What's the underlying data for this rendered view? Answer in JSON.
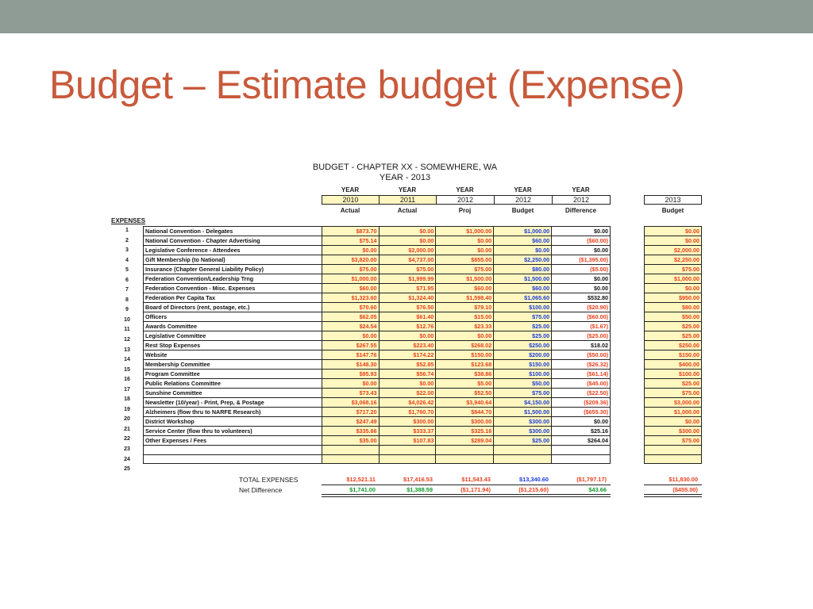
{
  "slide": {
    "title": "Budget – Estimate budget (Expense)"
  },
  "sheet": {
    "title": "BUDGET - CHAPTER XX - SOMEWHERE, WA",
    "subtitle": "YEAR - 2013",
    "expenses_label": "EXPENSES",
    "columns": [
      {
        "year_label": "YEAR",
        "year": "2010",
        "type": "Actual"
      },
      {
        "year_label": "YEAR",
        "year": "2011",
        "type": "Actual"
      },
      {
        "year_label": "YEAR",
        "year": "2012",
        "type": "Proj"
      },
      {
        "year_label": "YEAR",
        "year": "2012",
        "type": "Budget"
      },
      {
        "year_label": "YEAR",
        "year": "2012",
        "type": "Difference"
      }
    ],
    "budget_column": {
      "year": "2013",
      "type": "Budget"
    },
    "rows": [
      {
        "n": "1",
        "desc": "National Convention - Delegates",
        "a2010": "$873.70",
        "a2011": "$0.00",
        "p2012": "$1,000.00",
        "b2012": "$1,000.00",
        "diff": "$0.00",
        "b2013": "$0.00"
      },
      {
        "n": "2",
        "desc": "National Convention - Chapter Advertising",
        "a2010": "$75.14",
        "a2011": "$0.00",
        "p2012": "$0.00",
        "b2012": "$60.00",
        "diff": "($60.00)",
        "b2013": "$0.00"
      },
      {
        "n": "3",
        "desc": "Legislative Conference - Attendees",
        "a2010": "$0.00",
        "a2011": "$2,000.00",
        "p2012": "$0.00",
        "b2012": "$0.00",
        "diff": "$0.00",
        "b2013": "$2,000.00"
      },
      {
        "n": "4",
        "desc": "Gift Membership (to National)",
        "a2010": "$3,820.00",
        "a2011": "$4,737.00",
        "p2012": "$855.00",
        "b2012": "$2,250.00",
        "diff": "($1,395.00)",
        "b2013": "$2,250.00"
      },
      {
        "n": "5",
        "desc": "Insurance (Chapter General Liability Policy)",
        "a2010": "$75.00",
        "a2011": "$75.00",
        "p2012": "$75.00",
        "b2012": "$80.00",
        "diff": "($5.00)",
        "b2013": "$75.00"
      },
      {
        "n": "6",
        "desc": "Federation Convention/Leadership Trng",
        "a2010": "$1,000.00",
        "a2011": "$1,999.99",
        "p2012": "$1,500.00",
        "b2012": "$1,500.00",
        "diff": "$0.00",
        "b2013": "$1,000.00"
      },
      {
        "n": "7",
        "desc": "Federation Convention - Misc. Expenses",
        "a2010": "$60.00",
        "a2011": "$71.95",
        "p2012": "$60.00",
        "b2012": "$60.00",
        "diff": "$0.00",
        "b2013": "$0.00"
      },
      {
        "n": "8",
        "desc": "Federation Per Capita Tax",
        "a2010": "$1,323.60",
        "a2011": "$1,324.40",
        "p2012": "$1,598.40",
        "b2012": "$1,065.60",
        "diff": "$532.80",
        "b2013": "$950.00"
      },
      {
        "n": "9",
        "desc": "Board of Directors (rent, postage, etc.)",
        "a2010": "$70.60",
        "a2011": "$76.50",
        "p2012": "$79.10",
        "b2012": "$100.00",
        "diff": "($20.90)",
        "b2013": "$80.00"
      },
      {
        "n": "10",
        "desc": "Officers",
        "a2010": "$62.05",
        "a2011": "$61.40",
        "p2012": "$15.00",
        "b2012": "$75.00",
        "diff": "($60.00)",
        "b2013": "$50.00"
      },
      {
        "n": "11",
        "desc": "Awards Committee",
        "a2010": "$24.54",
        "a2011": "$12.76",
        "p2012": "$23.33",
        "b2012": "$25.00",
        "diff": "($1.67)",
        "b2013": "$25.00"
      },
      {
        "n": "12",
        "desc": "Legislative Committee",
        "a2010": "$0.00",
        "a2011": "$0.00",
        "p2012": "$0.00",
        "b2012": "$25.00",
        "diff": "($25.00)",
        "b2013": "$25.00"
      },
      {
        "n": "13",
        "desc": "Rest Stop Expenses",
        "a2010": "$267.55",
        "a2011": "$223.40",
        "p2012": "$268.02",
        "b2012": "$250.00",
        "diff": "$18.02",
        "b2013": "$250.00"
      },
      {
        "n": "14",
        "desc": "Website",
        "a2010": "$147.76",
        "a2011": "$174.22",
        "p2012": "$150.00",
        "b2012": "$200.00",
        "diff": "($50.00)",
        "b2013": "$150.00"
      },
      {
        "n": "15",
        "desc": "Membership Committee",
        "a2010": "$148.30",
        "a2011": "$52.85",
        "p2012": "$123.68",
        "b2012": "$150.00",
        "diff": "($26.32)",
        "b2013": "$400.00"
      },
      {
        "n": "16",
        "desc": "Program Committee",
        "a2010": "$95.93",
        "a2011": "$56.74",
        "p2012": "$38.86",
        "b2012": "$100.00",
        "diff": "($61.14)",
        "b2013": "$100.00"
      },
      {
        "n": "17",
        "desc": "Public Relations Committee",
        "a2010": "$0.00",
        "a2011": "$0.00",
        "p2012": "$5.00",
        "b2012": "$50.00",
        "diff": "($45.00)",
        "b2013": "$25.00"
      },
      {
        "n": "18",
        "desc": "Sunshine Committee",
        "a2010": "$73.43",
        "a2011": "$22.00",
        "p2012": "$52.50",
        "b2012": "$75.00",
        "diff": "($22.50)",
        "b2013": "$75.00"
      },
      {
        "n": "19",
        "desc": "Newsletter (10/year) - Print, Prep, & Postage",
        "a2010": "$3,068.16",
        "a2011": "$4,026.42",
        "p2012": "$3,940.64",
        "b2012": "$4,150.00",
        "diff": "($209.36)",
        "b2013": "$3,000.00"
      },
      {
        "n": "20",
        "desc": "Alzheimers (flow thru to NARFE Research)",
        "a2010": "$717.20",
        "a2011": "$1,760.70",
        "p2012": "$844.70",
        "b2012": "$1,500.00",
        "diff": "($655.30)",
        "b2013": "$1,000.00"
      },
      {
        "n": "21",
        "desc": "District Workshop",
        "a2010": "$247.49",
        "a2011": "$300.00",
        "p2012": "$300.00",
        "b2012": "$300.00",
        "diff": "$0.00",
        "b2013": "$0.00"
      },
      {
        "n": "22",
        "desc": "Service Center (flow thru to volunteers)",
        "a2010": "$335.66",
        "a2011": "$333.37",
        "p2012": "$325.16",
        "b2012": "$300.00",
        "diff": "$25.16",
        "b2013": "$300.00"
      },
      {
        "n": "23",
        "desc": "Other Expenses / Fees",
        "a2010": "$35.00",
        "a2011": "$107.83",
        "p2012": "$289.04",
        "b2012": "$25.00",
        "diff": "$264.04",
        "b2013": "$75.00"
      },
      {
        "n": "24",
        "desc": "",
        "a2010": "",
        "a2011": "",
        "p2012": "",
        "b2012": "",
        "diff": "",
        "b2013": ""
      },
      {
        "n": "25",
        "desc": "",
        "a2010": "",
        "a2011": "",
        "p2012": "",
        "b2012": "",
        "diff": "",
        "b2013": ""
      }
    ],
    "totals": {
      "label": "TOTAL EXPENSES",
      "a2010": "$12,521.11",
      "a2011": "$17,416.53",
      "p2012": "$11,543.43",
      "b2012": "$13,340.60",
      "diff": "($1,797.17)",
      "b2013": "$11,830.00"
    },
    "net": {
      "label": "Net Difference",
      "a2010": "$1,741.00",
      "a2011": "$1,388.59",
      "p2012": "($1,171.94)",
      "b2012": "($1,215.60)",
      "diff": "$43.66",
      "b2013": "($455.00)"
    },
    "colors": {
      "actual": "#e8401c",
      "budget": "#1a3cdc",
      "positive": "#119a2a",
      "highlight": "#fff7c0",
      "title": "#c85a3c",
      "topbar": "#8e9c95"
    }
  }
}
